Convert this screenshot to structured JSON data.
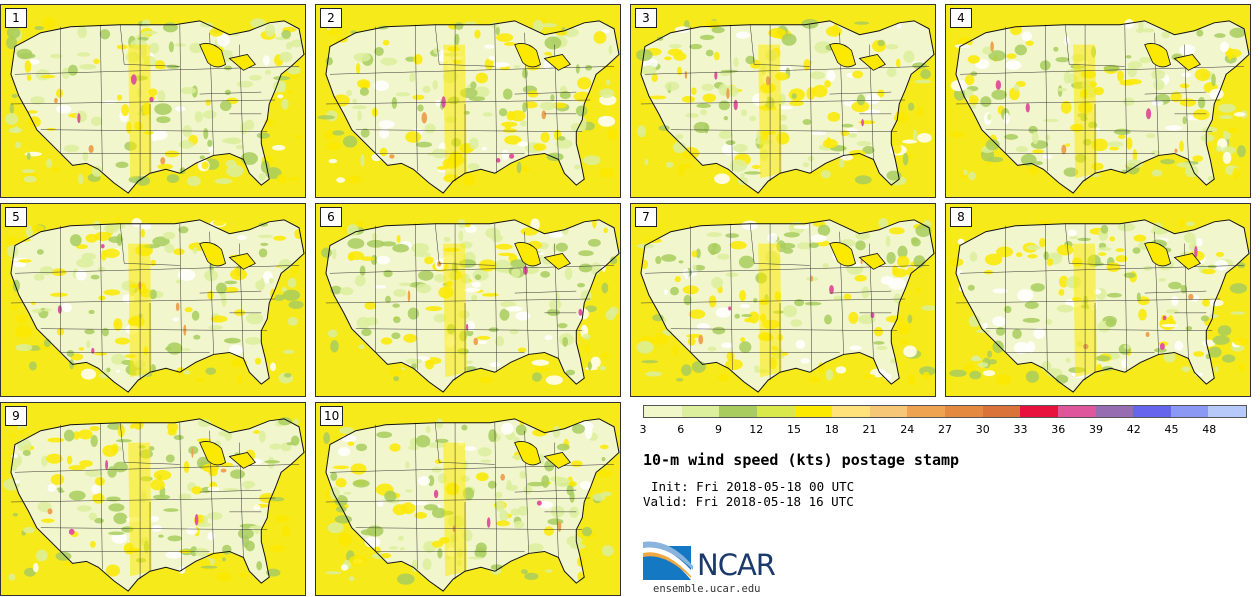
{
  "product_title": "10-m wind speed (kts) postage stamp",
  "init": "Init: Fri 2018-05-18 00 UTC",
  "valid": "Valid: Fri 2018-05-18 16 UTC",
  "logo_text": "NCAR",
  "url": "ensemble.ucar.edu",
  "members": [
    {
      "label": "1"
    },
    {
      "label": "2"
    },
    {
      "label": "3"
    },
    {
      "label": "4"
    },
    {
      "label": "5"
    },
    {
      "label": "6"
    },
    {
      "label": "7"
    },
    {
      "label": "8"
    },
    {
      "label": "9"
    },
    {
      "label": "10"
    }
  ],
  "colorbar": {
    "colors": [
      "#f1f7c9",
      "#dcef9c",
      "#a8cc5e",
      "#d9e84a",
      "#fbe900",
      "#ffe27a",
      "#f5c777",
      "#eda350",
      "#e48a40",
      "#d9733a",
      "#e8103c",
      "#e0569c",
      "#956db0",
      "#6665ee",
      "#8b99f5",
      "#b7c9f9"
    ],
    "tick_labels": [
      "3",
      "6",
      "9",
      "12",
      "15",
      "18",
      "21",
      "24",
      "27",
      "30",
      "33",
      "36",
      "39",
      "42",
      "45",
      "48"
    ]
  }
}
